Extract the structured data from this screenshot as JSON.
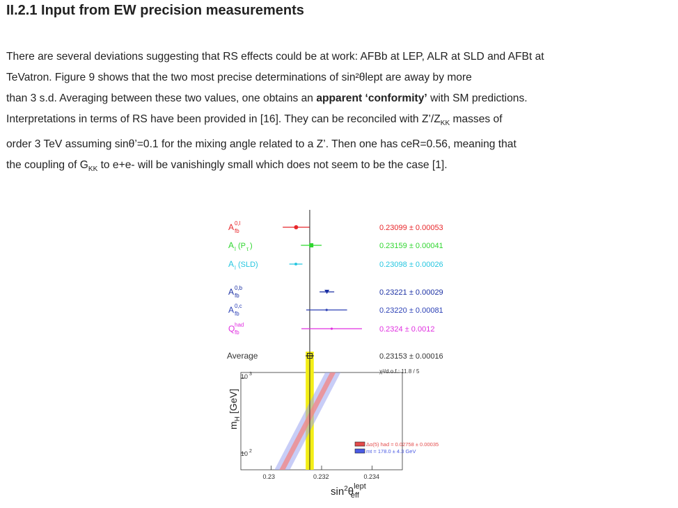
{
  "section": {
    "title": "II.2.1 Input from EW precision measurements"
  },
  "paragraph": {
    "l1": "There are several deviations suggesting that RS effects could be at work: AFBb at LEP, ALR at SLD and AFBt at",
    "l2a": "TeVatron. Figure 9 shows that the two most precise determinations of sin²",
    "l2b": "θ",
    "l2c": "lept are away by more",
    "l3": "than 3 s.d. Averaging between these two values, one obtains an ",
    "l3b": "apparent ‘conformity’",
    "l3c": " with SM predictions.",
    "l4a": "Interpretations in terms of RS have been provided in [16]. They can be reconciled with Z’/Z",
    "l4sub": "KK",
    "l4b": " masses of",
    "l5a": "order 3 TeV assuming sin",
    "l5b": "θ",
    "l5c": "’=0.1 for the mixing angle related to a Z’. Then one has ceR=0.56, meaning that",
    "l6a": "the coupling of G",
    "l6sub": "KK",
    "l6b": " to e+e- will be vanishingly small which does not seem to be the case [1]."
  },
  "chart_data": {
    "type": "scatter",
    "title": "",
    "xlabel": "sin²θeff lept",
    "ylabel": "mH [GeV]",
    "xlim": [
      0.2288,
      0.2352
    ],
    "x_ticks": [
      0.23,
      0.232,
      0.234
    ],
    "x_tick_labels": [
      "0.23",
      "0.232",
      "0.234"
    ],
    "y_tick_labels": [
      "10 3",
      "10 2"
    ],
    "sm_line_x": 0.23153,
    "measurements": [
      {
        "label": "A fb 0,l",
        "value": 0.23099,
        "error": 0.00053,
        "text": "0.23099 ± 0.00053",
        "color": "#e8262a",
        "marker": "circle"
      },
      {
        "label": "A l(P τ)",
        "value": 0.23159,
        "error": 0.00041,
        "text": "0.23159 ± 0.00041",
        "color": "#2fd62f",
        "marker": "square"
      },
      {
        "label": "A l(SLD)",
        "value": 0.23098,
        "error": 0.00026,
        "text": "0.23098 ± 0.00026",
        "color": "#25c6e0",
        "marker": "star"
      },
      {
        "label": "A fb 0,b",
        "value": 0.23221,
        "error": 0.00029,
        "text": "0.23221 ± 0.00029",
        "color": "#1a2fa3",
        "marker": "triangle"
      },
      {
        "label": "A fb 0,c",
        "value": 0.2322,
        "error": 0.00081,
        "text": "0.23220 ± 0.00081",
        "color": "#2a3fb5",
        "marker": "small"
      },
      {
        "label": "Q fb had",
        "value": 0.2324,
        "error": 0.0012,
        "text": "0.2324 ± 0.0012",
        "color": "#e02fe0",
        "marker": "small"
      }
    ],
    "average": {
      "label": "Average",
      "value": 0.23153,
      "error": 0.00016,
      "text": "0.23153 ± 0.00016",
      "chi2": "χ²/d.o.f.: 11.8 / 5"
    },
    "legend": [
      {
        "label": "Δα(5) had = 0.02758 ± 0.00035",
        "color": "#e34a4a"
      },
      {
        "label": "mt = 178.0 ± 4.3 GeV",
        "color": "#4a5ae3"
      }
    ]
  }
}
